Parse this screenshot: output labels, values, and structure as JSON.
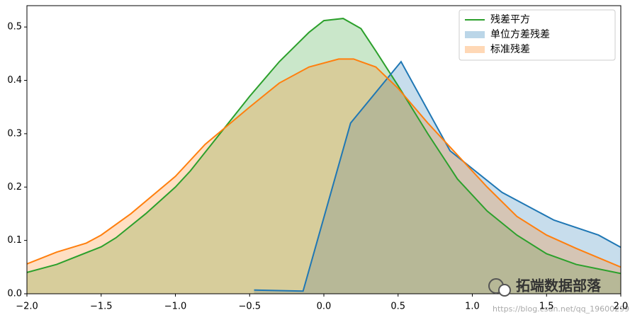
{
  "chart_data": {
    "type": "area",
    "xlim": [
      -2.0,
      2.0
    ],
    "xticks": [
      {
        "value": -2.0,
        "label": "−2.0"
      },
      {
        "value": -1.5,
        "label": "−1.5"
      },
      {
        "value": -1.0,
        "label": "−1.0"
      },
      {
        "value": -0.5,
        "label": "−0.5"
      },
      {
        "value": 0,
        "label": "0.0"
      },
      {
        "value": 0.5,
        "label": "0.5"
      },
      {
        "value": 1.0,
        "label": "1.0"
      },
      {
        "value": 1.5,
        "label": "1.5"
      },
      {
        "value": 2.0,
        "label": "2.0"
      }
    ],
    "ylim": [
      0,
      0.54
    ],
    "yticks": [
      {
        "value": 0,
        "label": "0.0"
      },
      {
        "value": 0.1,
        "label": "0.1"
      },
      {
        "value": 0.2,
        "label": "0.2"
      },
      {
        "value": 0.3,
        "label": "0.3"
      },
      {
        "value": 0.4,
        "label": "0.4"
      },
      {
        "value": 0.5,
        "label": "0.5"
      }
    ],
    "legend": "upper right",
    "series": [
      {
        "name": "残差平方",
        "color": "#2ca02c",
        "legend_marker": "line",
        "x": [
          -2.0,
          -1.8,
          -1.5,
          -1.4,
          -1.2,
          -1.0,
          -0.9,
          -0.7,
          -0.5,
          -0.3,
          -0.1,
          0.0,
          0.13,
          0.25,
          0.35,
          0.5,
          0.7,
          0.9,
          1.1,
          1.3,
          1.5,
          1.7,
          2.0
        ],
        "values": [
          0.04,
          0.055,
          0.088,
          0.105,
          0.15,
          0.2,
          0.23,
          0.3,
          0.37,
          0.435,
          0.49,
          0.512,
          0.516,
          0.497,
          0.455,
          0.39,
          0.3,
          0.215,
          0.155,
          0.11,
          0.075,
          0.055,
          0.038
        ]
      },
      {
        "name": "单位方差残差",
        "color": "#1f77b4",
        "legend_marker": "patch",
        "x": [
          -0.47,
          -0.14,
          0.18,
          0.52,
          0.85,
          1.2,
          1.55,
          1.85,
          2.0
        ],
        "values": [
          0.007,
          0.005,
          0.32,
          0.435,
          0.268,
          0.19,
          0.138,
          0.11,
          0.087
        ]
      },
      {
        "name": "标准残差",
        "color": "#ff7f0e",
        "legend_marker": "patch",
        "x": [
          -2.0,
          -1.8,
          -1.6,
          -1.5,
          -1.3,
          -1.0,
          -0.8,
          -0.5,
          -0.3,
          -0.1,
          0.1,
          0.2,
          0.35,
          0.5,
          0.7,
          0.9,
          1.1,
          1.3,
          1.5,
          1.7,
          2.0
        ],
        "values": [
          0.056,
          0.078,
          0.095,
          0.11,
          0.15,
          0.22,
          0.28,
          0.35,
          0.395,
          0.425,
          0.44,
          0.44,
          0.425,
          0.385,
          0.32,
          0.26,
          0.2,
          0.145,
          0.11,
          0.085,
          0.05
        ]
      }
    ],
    "annotations": [
      "拓端数据部落",
      "https://blog.csdn.net/qq_19600299"
    ]
  }
}
